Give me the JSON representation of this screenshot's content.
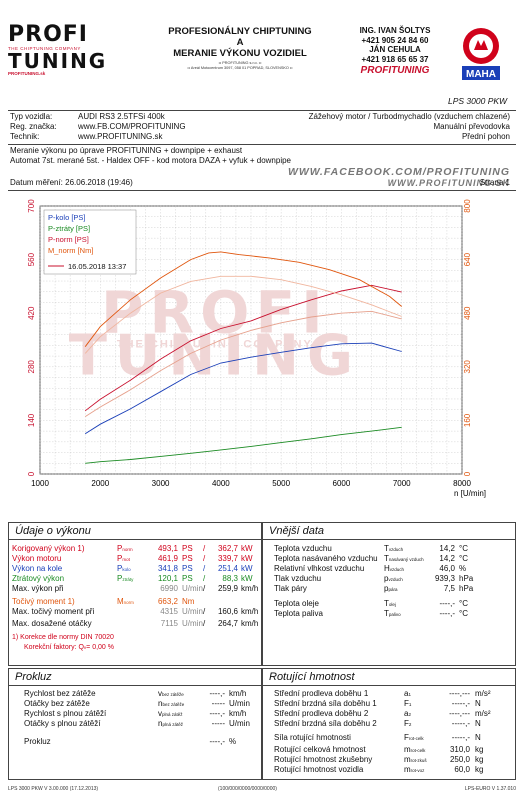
{
  "header": {
    "logo": {
      "line1": "PROFI",
      "tagline": "THE CHIPTUNING COMPANY",
      "line2": "TUNING",
      "mini": "PROFITUNING.sk"
    },
    "title_lines": [
      "PROFESIONÁLNY CHIPTUNING",
      "A",
      "MERANIE VÝKONU VOZIDIEL"
    ],
    "small_lines": [
      "•• PROFITUNING s.r.o. ••",
      "•• Areál Motocentrum 3097, 058 01 POPRAD, SLOVENSKO ••"
    ],
    "contact": [
      "ING. IVAN ŠOLTYS",
      "+421 905 24 84 60",
      "JÁN CEHULA",
      "+421 918 65 65 37"
    ],
    "contact_brand": "PROFITUNING",
    "maha": "MAHA",
    "maha_ring": "Maschinenbau Haldenwang",
    "lps": "LPS 3000 PKW"
  },
  "vehicle": {
    "left_labels": [
      "Typ vozidla:",
      "Reg. značka:",
      "Technik:"
    ],
    "left_values": [
      "AUDI RS3 2.5TFSi 400k",
      "www.FB.COM/PROFITUNING",
      "www.PROFITUNING.sk"
    ],
    "right_values": [
      "Zážehový motor / Turbodmychadlo (vzduchem chlazené)",
      "Manuální převodovka",
      "Přední pohon"
    ]
  },
  "description": [
    "Meranie výkonu po úprave PROFITUNING + downpipe + exhaust",
    "Automat 7st. merané 5st. - Haldex OFF - kod motora DAZA + vyfuk + downpipe"
  ],
  "facebook_lines": [
    "WWW.FACEBOOK.COM/PROFITUNING",
    "WWW.PROFITUNING.SK"
  ],
  "measurement": {
    "date_label": "Datum měření: 26.06.2018 (19:46)",
    "page_label": "Strana 1"
  },
  "chart_data": {
    "type": "line",
    "xlabel": "n [U/min]",
    "x_range": [
      1000,
      8000
    ],
    "x_ticks": [
      1000,
      2000,
      3000,
      4000,
      5000,
      6000,
      7000,
      8000
    ],
    "y_left_range": [
      0,
      700
    ],
    "y_left_ticks": [
      0,
      140,
      280,
      420,
      560,
      700
    ],
    "y_right_range": [
      0,
      800
    ],
    "y_right_ticks": [
      0,
      160,
      320,
      480,
      640,
      800
    ],
    "legend": [
      {
        "text": "P-kolo [PS]",
        "color": "#1a3fb8"
      },
      {
        "text": "P-ztráty [PS]",
        "color": "#1a8a22"
      },
      {
        "text": "P-norm [PS]",
        "color": "#c8102e"
      },
      {
        "text": "M_norm [Nm]",
        "color": "#e0560e"
      },
      {
        "text": "16.05.2018 13:37",
        "color": "#c8102e"
      }
    ],
    "series": [
      {
        "name": "P-norm [PS]",
        "color": "#c8102e",
        "axis": "left",
        "x": [
          1750,
          2000,
          2500,
          3000,
          3500,
          4000,
          4500,
          5000,
          5500,
          6000,
          6500,
          7000
        ],
        "y": [
          165,
          195,
          245,
          300,
          348,
          380,
          400,
          430,
          455,
          478,
          493,
          475
        ]
      },
      {
        "name": "P-kolo [PS]",
        "color": "#1a3fb8",
        "axis": "left",
        "x": [
          1750,
          2000,
          2500,
          3000,
          3500,
          4000,
          4500,
          5000,
          5500,
          6000,
          6500,
          7000
        ],
        "y": [
          105,
          130,
          170,
          215,
          260,
          290,
          305,
          318,
          330,
          340,
          342,
          320
        ]
      },
      {
        "name": "P-ztráty [PS]",
        "color": "#1a8a22",
        "axis": "left",
        "x": [
          1750,
          2000,
          2500,
          3000,
          3500,
          4000,
          4500,
          5000,
          5500,
          6000,
          6500,
          7000
        ],
        "y": [
          28,
          32,
          38,
          46,
          54,
          63,
          72,
          82,
          92,
          103,
          112,
          122
        ]
      },
      {
        "name": "M_norm [Nm]",
        "color": "#e0560e",
        "axis": "right",
        "x": [
          1750,
          2000,
          2500,
          3000,
          3500,
          3800,
          4000,
          4300,
          4800,
          5300,
          5800,
          6300,
          6800,
          7000
        ],
        "y": [
          380,
          440,
          520,
          585,
          640,
          660,
          663,
          655,
          645,
          632,
          610,
          580,
          530,
          500
        ]
      },
      {
        "name": "16.05.2018 13:37",
        "color": "#e6a08c",
        "axis": "left",
        "x": [
          1750,
          2000,
          2500,
          3000,
          3500,
          4000,
          4500,
          5000,
          5500,
          6000,
          6500,
          7000
        ],
        "y": [
          150,
          175,
          220,
          270,
          315,
          350,
          375,
          395,
          410,
          420,
          425,
          405
        ]
      },
      {
        "name": "16.05.2018 13:37 M",
        "color": "#f0b59e",
        "axis": "right",
        "x": [
          1750,
          2000,
          2500,
          3000,
          3500,
          4000,
          4500,
          5000,
          5500,
          6000,
          6500,
          7000
        ],
        "y": [
          360,
          410,
          480,
          540,
          575,
          590,
          590,
          580,
          560,
          535,
          505,
          470
        ]
      }
    ],
    "watermark": {
      "line1": "PROFI",
      "tagline": "THE CHIPTUNING COMPANY",
      "line2": "TUNING"
    }
  },
  "udaje": {
    "title": "Údaje o výkonu",
    "rows": [
      {
        "label": "Korigovaný výkon 1)",
        "sym": "P",
        "sub": "norm",
        "v1": "493,1",
        "u1": "PS",
        "v2": "362,7",
        "u2": "kW",
        "color": "red"
      },
      {
        "label": "Výkon motoru",
        "sym": "P",
        "sub": "mot",
        "v1": "461,9",
        "u1": "PS",
        "v2": "339,7",
        "u2": "kW",
        "color": "red"
      },
      {
        "label": "Výkon na kole",
        "sym": "P",
        "sub": "kolo",
        "v1": "341,8",
        "u1": "PS",
        "v2": "251,4",
        "u2": "kW",
        "color": "blue"
      },
      {
        "label": "Ztrátový výkon",
        "sym": "P",
        "sub": "ztráty",
        "v1": "120,1",
        "u1": "PS",
        "v2": "88,3",
        "u2": "kW",
        "color": "green"
      },
      {
        "label": "Max. výkon při",
        "sym": "",
        "sub": "",
        "v1": "6990",
        "u1": "U/min",
        "v2": "259,9",
        "u2": "km/h",
        "color": "mix"
      }
    ],
    "torque_label": "Točivý moment 1)",
    "torque_sym": "M",
    "torque_sub": "norm",
    "torque_val": "663,2",
    "torque_unit": "Nm",
    "max_torque_label": "Max. točivý moment při",
    "max_torque_rpm": "4315",
    "max_torque_u1": "U/min",
    "max_torque_speed": "160,6",
    "max_torque_u2": "km/h",
    "max_rpm_label": "Max. dosažené otáčky",
    "max_rpm": "7115",
    "max_rpm_u1": "U/min",
    "max_rpm_speed": "264,7",
    "max_rpm_u2": "km/h",
    "note1": "1) Korekce dle normy DIN 70020",
    "note2": "Korekční faktory: Q",
    "note2_sub": "v",
    "note2_val": "= 0,00 %"
  },
  "vnejsi": {
    "title": "Vnější data",
    "rows": [
      {
        "label": "Teplota vzduchu",
        "sym": "T",
        "sub": "vzduch",
        "val": "14,2",
        "unit": "°C"
      },
      {
        "label": "Teplota nasávaného vzduchu",
        "sym": "T",
        "sub": "nasávaný vzduch",
        "val": "14,2",
        "unit": "°C"
      },
      {
        "label": "Relativní vlhkost vzduchu",
        "sym": "H",
        "sub": "vzduch",
        "val": "46,0",
        "unit": "%"
      },
      {
        "label": "Tlak vzduchu",
        "sym": "p",
        "sub": "vzduch",
        "val": "939,3",
        "unit": "hPa"
      },
      {
        "label": "Tlak páry",
        "sym": "p",
        "sub": "pára",
        "val": "7,5",
        "unit": "hPa"
      },
      {
        "label": "Teplota oleje",
        "sym": "T",
        "sub": "olej",
        "val": "----,-",
        "unit": "°C"
      },
      {
        "label": "Teplota paliva",
        "sym": "T",
        "sub": "palivo",
        "val": "----,-",
        "unit": "°C"
      }
    ]
  },
  "prokluz": {
    "title": "Prokluz",
    "rows": [
      {
        "label": "Rychlost bez zátěže",
        "sym": "v",
        "sub": "bez zátěže",
        "val": "----,-",
        "unit": "km/h"
      },
      {
        "label": "Otáčky bez zátěže",
        "sym": "n",
        "sub": "bez zátěže",
        "val": "-----",
        "unit": "U/min"
      },
      {
        "label": "Rychlost s plnou zátěží",
        "sym": "v",
        "sub": "plná zátěž",
        "val": "----,-",
        "unit": "km/h"
      },
      {
        "label": "Otáčky s plnou zátěží",
        "sym": "n",
        "sub": "plná zátěž",
        "val": "-----",
        "unit": "U/min"
      },
      {
        "label": "Prokluz",
        "sym": "",
        "sub": "",
        "val": "----,-",
        "unit": "%"
      }
    ]
  },
  "rotujici": {
    "title": "Rotující hmotnost",
    "rows": [
      {
        "label": "Střední prodleva doběhu 1",
        "sym": "a",
        "sub": "1",
        "val": "----,---",
        "unit": "m/s²"
      },
      {
        "label": "Střední brzdná síla doběhu 1",
        "sym": "F",
        "sub": "1",
        "val": "-----,-",
        "unit": "N"
      },
      {
        "label": "Střední prodleva doběhu 2",
        "sym": "a",
        "sub": "2",
        "val": "----,---",
        "unit": "m/s²"
      },
      {
        "label": "Střední brzdná síla doběhu 2",
        "sym": "F",
        "sub": "2",
        "val": "-----,-",
        "unit": "N"
      },
      {
        "label": "Síla rotující hmotnosti",
        "sym": "F",
        "sub": "rot-celk",
        "val": "-----,-",
        "unit": "N"
      },
      {
        "label": "Rotující celková hmotnost",
        "sym": "m",
        "sub": "rot-celk",
        "val": "310,0",
        "unit": "kg"
      },
      {
        "label": "Rotující hmotnost zkušebny",
        "sym": "m",
        "sub": "rot-zkuš",
        "val": "250,0",
        "unit": "kg"
      },
      {
        "label": "Rotující hmotnost vozidla",
        "sym": "m",
        "sub": "rot-voz",
        "val": "60,0",
        "unit": "kg"
      }
    ]
  },
  "footer": {
    "left": "LPS 3000 PKW V 3.00.000 (17.12.2013)",
    "center": "(100/000/0000/0000/0000)",
    "right": "LPS-EURO V 1.37.010"
  }
}
